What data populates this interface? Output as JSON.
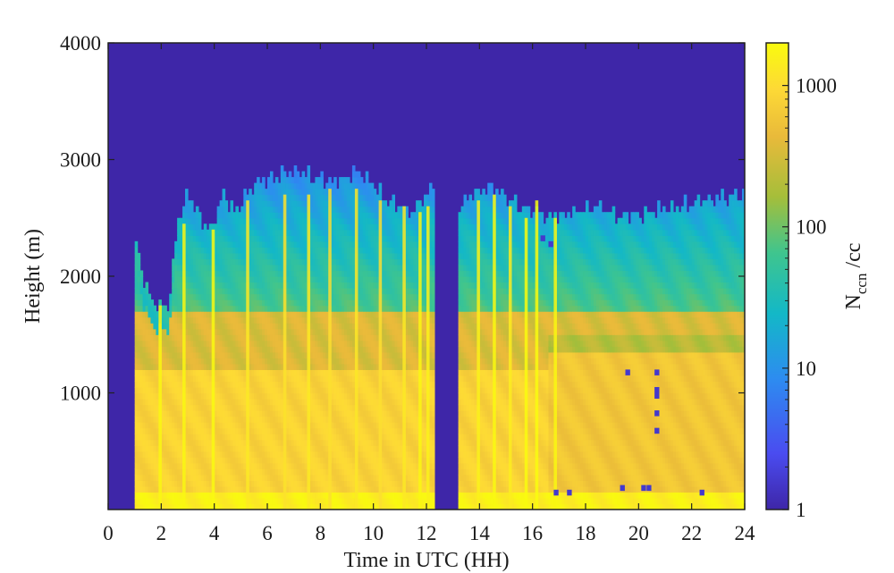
{
  "chart_data": {
    "type": "heatmap",
    "title": "",
    "xlabel": "Time in UTC (HH)",
    "ylabel": "Height (m)",
    "xlim": [
      0,
      24
    ],
    "ylim": [
      0,
      4000
    ],
    "x_ticks": [
      0,
      2,
      4,
      6,
      8,
      10,
      12,
      14,
      16,
      18,
      20,
      22,
      24
    ],
    "x_tick_labels": [
      "0",
      "2",
      "4",
      "6",
      "8",
      "10",
      "12",
      "14",
      "16",
      "18",
      "20",
      "22",
      "24"
    ],
    "y_ticks": [
      1000,
      2000,
      3000,
      4000
    ],
    "y_tick_labels": [
      "1000",
      "2000",
      "3000",
      "4000"
    ],
    "colorbar": {
      "label_main": "N",
      "label_sub": "ccn",
      "label_tail": " /cc",
      "scale": "log",
      "range": [
        1,
        2000
      ],
      "ticks": [
        1,
        10,
        100,
        1000
      ],
      "tick_labels": [
        "1",
        "10",
        "100",
        "1000"
      ],
      "colormap": "parula",
      "colors": [
        "#3e26a8",
        "#4a4cf0",
        "#2d8cf0",
        "#13b8c7",
        "#3fc58e",
        "#a5be3a",
        "#e9ba3a",
        "#fdd936",
        "#f9fb0e"
      ]
    },
    "background_value": 1,
    "gap_hours": [
      [
        12.3,
        13.2
      ]
    ],
    "layers": [
      {
        "name": "upper",
        "top_m": 2800,
        "bottom_m": 1700,
        "value": 55
      },
      {
        "name": "middle",
        "top_m": 1700,
        "bottom_m": 1200,
        "value": 250
      },
      {
        "name": "lower",
        "top_m": 1200,
        "bottom_m": 150,
        "value": 650
      },
      {
        "name": "surface",
        "top_m": 150,
        "bottom_m": 0,
        "value": 1500
      }
    ],
    "profile_tops_m": [
      {
        "t": 1.0,
        "top": 2350
      },
      {
        "t": 1.4,
        "top": 1900
      },
      {
        "t": 1.8,
        "top": 1750
      },
      {
        "t": 2.3,
        "top": 1750
      },
      {
        "t": 2.6,
        "top": 2450
      },
      {
        "t": 3.0,
        "top": 2700
      },
      {
        "t": 3.5,
        "top": 2500
      },
      {
        "t": 3.9,
        "top": 2400
      },
      {
        "t": 4.3,
        "top": 2700
      },
      {
        "t": 4.8,
        "top": 2550
      },
      {
        "t": 5.5,
        "top": 2800
      },
      {
        "t": 7.0,
        "top": 2900
      },
      {
        "t": 8.5,
        "top": 2800
      },
      {
        "t": 9.5,
        "top": 2900
      },
      {
        "t": 10.5,
        "top": 2650
      },
      {
        "t": 11.5,
        "top": 2550
      },
      {
        "t": 12.3,
        "top": 2800
      },
      {
        "t": 13.2,
        "top": 2600
      },
      {
        "t": 13.8,
        "top": 2700
      },
      {
        "t": 14.5,
        "top": 2750
      },
      {
        "t": 15.5,
        "top": 2600
      },
      {
        "t": 16.5,
        "top": 2500
      },
      {
        "t": 17.5,
        "top": 2550
      },
      {
        "t": 18.5,
        "top": 2600
      },
      {
        "t": 19.5,
        "top": 2500
      },
      {
        "t": 20.5,
        "top": 2550
      },
      {
        "t": 21.5,
        "top": 2600
      },
      {
        "t": 22.5,
        "top": 2650
      },
      {
        "t": 24.0,
        "top": 2700
      }
    ],
    "right_side_layers": [
      {
        "from_t": 16.5,
        "top_m": 1500,
        "bottom_m": 1350,
        "value": 150
      },
      {
        "from_t": 16.5,
        "top_m": 1350,
        "bottom_m": 150,
        "value": 450
      }
    ],
    "vertical_streaks": [
      {
        "t": 1.9,
        "top": 1750,
        "value": 1800
      },
      {
        "t": 2.8,
        "top": 2450,
        "value": 1800
      },
      {
        "t": 3.9,
        "top": 2400,
        "value": 1900
      },
      {
        "t": 5.2,
        "top": 2650,
        "value": 1200
      },
      {
        "t": 6.6,
        "top": 2700,
        "value": 1000
      },
      {
        "t": 7.5,
        "top": 2700,
        "value": 1200
      },
      {
        "t": 8.3,
        "top": 2750,
        "value": 900
      },
      {
        "t": 9.3,
        "top": 2750,
        "value": 1100
      },
      {
        "t": 10.2,
        "top": 2650,
        "value": 900
      },
      {
        "t": 11.1,
        "top": 2600,
        "value": 1200
      },
      {
        "t": 11.7,
        "top": 2550,
        "value": 1800
      },
      {
        "t": 12.0,
        "top": 2600,
        "value": 1500
      },
      {
        "t": 13.9,
        "top": 2650,
        "value": 1500
      },
      {
        "t": 14.5,
        "top": 2700,
        "value": 1900
      },
      {
        "t": 15.1,
        "top": 2600,
        "value": 1300
      },
      {
        "t": 15.7,
        "top": 2500,
        "value": 2000
      },
      {
        "t": 16.1,
        "top": 2650,
        "value": 2000
      },
      {
        "t": 16.8,
        "top": 2500,
        "value": 1800
      }
    ],
    "low_value_points": [
      {
        "t": 19.5,
        "h": 1150
      },
      {
        "t": 20.6,
        "h": 1150
      },
      {
        "t": 20.6,
        "h": 1000
      },
      {
        "t": 20.6,
        "h": 950
      },
      {
        "t": 20.6,
        "h": 800
      },
      {
        "t": 20.6,
        "h": 650
      },
      {
        "t": 16.8,
        "h": 120
      },
      {
        "t": 17.3,
        "h": 120
      },
      {
        "t": 19.3,
        "h": 160
      },
      {
        "t": 20.1,
        "h": 160
      },
      {
        "t": 20.3,
        "h": 160
      },
      {
        "t": 22.3,
        "h": 120
      },
      {
        "t": 16.3,
        "h": 2300
      },
      {
        "t": 16.6,
        "h": 2250
      }
    ]
  }
}
